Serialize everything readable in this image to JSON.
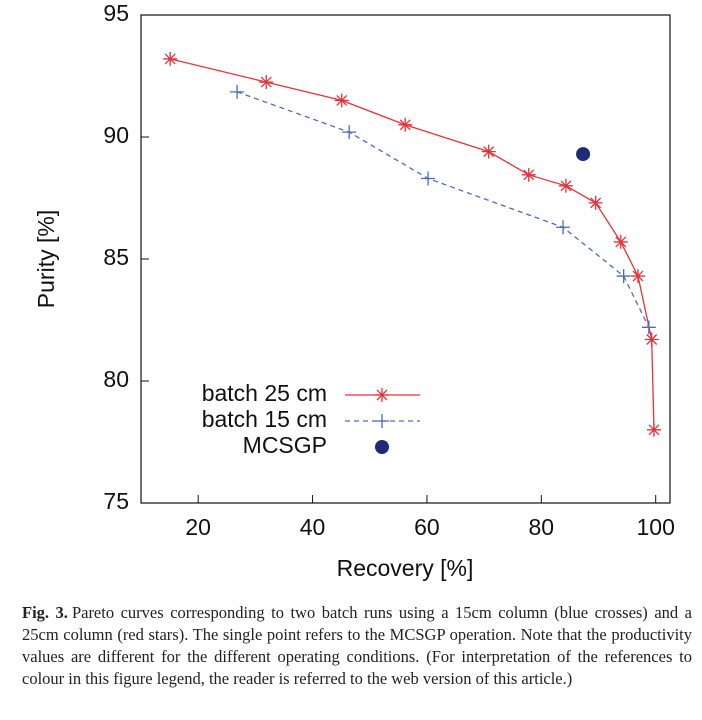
{
  "chart_data": {
    "type": "line",
    "x_label": "Recovery [%]",
    "y_label": "Purity [%]",
    "xlim": [
      10,
      102.5
    ],
    "ylim": [
      75,
      95
    ],
    "xticks": [
      20,
      40,
      60,
      80,
      100
    ],
    "yticks": [
      75,
      80,
      85,
      90,
      95
    ],
    "legend": "bottom-left",
    "series": [
      {
        "name": "batch 25 cm",
        "color": "#e8323a",
        "marker": "star",
        "line": "solid",
        "x": [
          15.1,
          31.9,
          45.1,
          56.2,
          70.8,
          77.8,
          84.3,
          89.5,
          93.9,
          96.9,
          99.3,
          99.7
        ],
        "values": [
          93.2,
          92.25,
          91.5,
          90.5,
          89.4,
          88.45,
          88.0,
          87.3,
          85.7,
          84.3,
          81.7,
          78.0
        ]
      },
      {
        "name": "batch 15 cm",
        "color": "#4a6cb8",
        "marker": "plus",
        "line": "dashed",
        "x": [
          26.8,
          46.4,
          60.2,
          83.8,
          94.4,
          98.8
        ],
        "values": [
          91.85,
          90.2,
          88.3,
          86.3,
          84.3,
          82.2
        ]
      },
      {
        "name": "MCSGP",
        "color": "#1f2a7a",
        "marker": "circle",
        "line": "none",
        "x": [
          87.3
        ],
        "values": [
          89.3
        ]
      }
    ]
  },
  "caption": {
    "label": "Fig. 3.",
    "text": "Pareto curves corresponding to two batch runs using a 15cm column (blue crosses) and a 25cm column (red stars). The single point refers to the MCSGP operation. Note that the productivity values are different for the different operating conditions. (For interpretation of the references to colour in this figure legend, the reader is referred to the web version of this article.)"
  }
}
